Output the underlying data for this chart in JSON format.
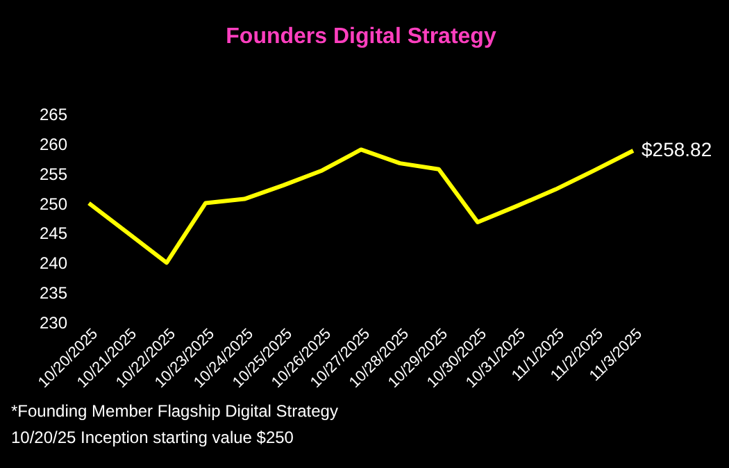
{
  "chart_data": {
    "type": "line",
    "title": "Founders Digital Strategy",
    "categories": [
      "10/20/2025",
      "10/21/2025",
      "10/22/2025",
      "10/23/2025",
      "10/24/2025",
      "10/25/2025",
      "10/26/2025",
      "10/27/2025",
      "10/28/2025",
      "10/29/2025",
      "10/30/2025",
      "10/31/2025",
      "11/1/2025",
      "11/2/2025",
      "11/3/2025"
    ],
    "series": [
      {
        "color": "#ffff00",
        "values": [
          250,
          245,
          240,
          250,
          250.7,
          253,
          255.5,
          259,
          256.7,
          255.7,
          246.8,
          249.5,
          252.3,
          255.5,
          258.82
        ],
        "value_labels": [
          null,
          null,
          null,
          null,
          null,
          null,
          null,
          null,
          null,
          null,
          null,
          null,
          null,
          null,
          "$258.82"
        ]
      }
    ],
    "ylim": [
      230,
      265
    ],
    "yticks": [
      230,
      235,
      240,
      245,
      250,
      255,
      260,
      265
    ],
    "grid": false,
    "marker": "none",
    "line_style": "solid",
    "annotations": [
      "*Founding Member Flagship Digital Strategy",
      "10/20/25 Inception starting value $250"
    ]
  }
}
